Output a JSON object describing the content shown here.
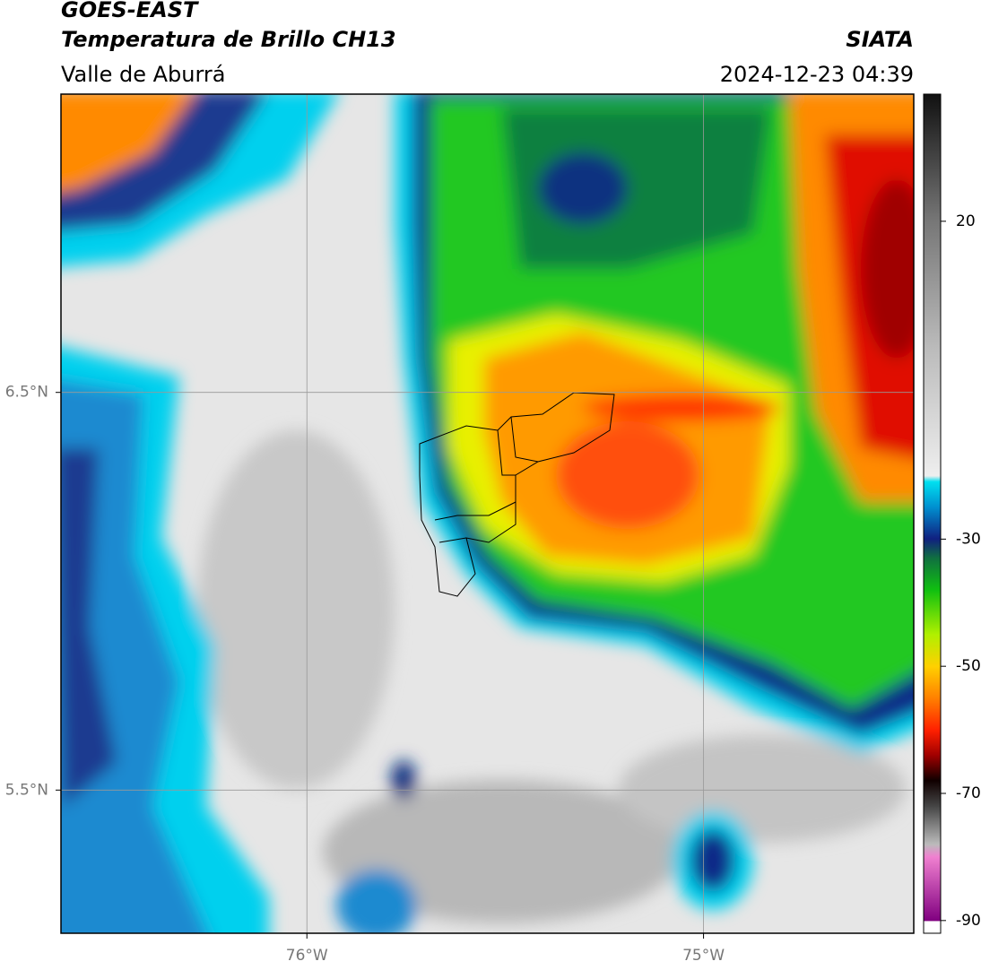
{
  "header": {
    "title": "GOES-EAST",
    "subtitle": "Temperatura de Brillo CH13",
    "region": "Valle de Aburrá",
    "source": "SIATA",
    "datetime": "2024-12-23 04:39"
  },
  "map": {
    "xlim": [
      -76.62,
      -74.47
    ],
    "ylim": [
      5.14,
      7.25
    ],
    "xticks": [
      {
        "value": -76,
        "label": "76°W"
      },
      {
        "value": -75,
        "label": "75°W"
      }
    ],
    "yticks": [
      {
        "value": 6.5,
        "label": "6.5°N"
      },
      {
        "value": 5.5,
        "label": "5.5°N"
      }
    ],
    "grid": true
  },
  "colorbar": {
    "lim": [
      -92,
      40
    ],
    "ticks": [
      20,
      -30,
      -50,
      -70,
      -90
    ]
  }
}
